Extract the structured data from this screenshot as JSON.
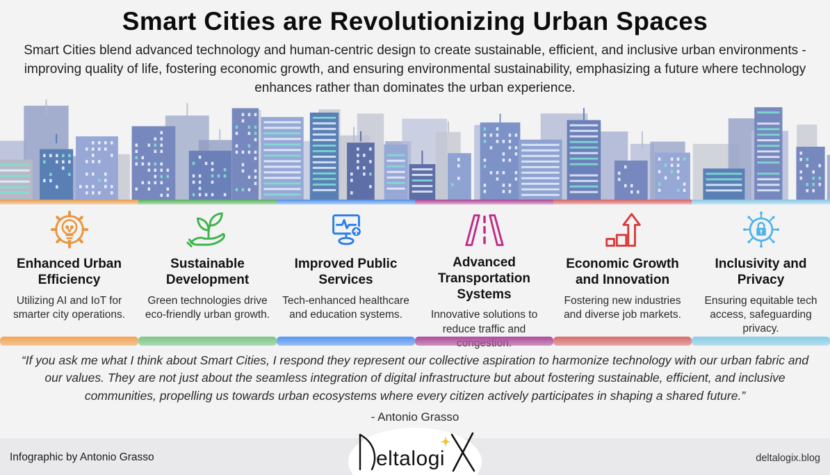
{
  "page": {
    "title": "Smart Cities are Revolutionizing Urban Spaces",
    "subtitle": "Smart Cities blend advanced technology and human-centric design to create sustainable, efficient, and inclusive urban environments - improving quality of life, fostering economic growth, and ensuring environmental sustainability, emphasizing a future where technology enhances rather than dominates the urban experience."
  },
  "theme": {
    "background": "#f3f3f4",
    "footer_background": "#e9e9eb",
    "title_color": "#0c0c0c",
    "body_text_color": "#2b2b2b",
    "skyline_palette": [
      "#5d6fa6",
      "#6b7fb8",
      "#7d92c6",
      "#8fa3d2",
      "#a0b0dc",
      "#5a7fb5",
      "#7688bd",
      "#98a8d6",
      "#b6bac6",
      "#7fd8cf"
    ]
  },
  "columns": [
    {
      "title": "Enhanced Urban Efficiency",
      "description": "Utilizing AI and IoT for smarter city operations.",
      "icon": "gear-lightbulb-icon",
      "icon_color": "#E8953C",
      "strip_color": "#E69A45",
      "bar_color": "#F2A95C"
    },
    {
      "title": "Sustainable Development",
      "description": "Green technologies drive eco-friendly urban growth.",
      "icon": "hand-plant-icon",
      "icon_color": "#3CB44B",
      "strip_color": "#52AF57",
      "bar_color": "#82C88C"
    },
    {
      "title": "Improved Public Services",
      "description": "Tech-enhanced healthcare and education systems.",
      "icon": "health-monitor-icon",
      "icon_color": "#2B7DE9",
      "strip_color": "#4A90E8",
      "bar_color": "#5E9CF0"
    },
    {
      "title": "Advanced Transportation Systems",
      "description": "Innovative solutions to reduce traffic and congestion.",
      "icon": "highway-icon",
      "icon_color": "#C02B87",
      "strip_color": "#AE3E93",
      "bar_color": "#B2549E"
    },
    {
      "title": "Economic Growth and Innovation",
      "description": "Fostering new industries and diverse job markets.",
      "icon": "growth-arrow-icon",
      "icon_color": "#D83B3B",
      "strip_color": "#D95F5F",
      "bar_color": "#D97474"
    },
    {
      "title": "Inclusivity and Privacy",
      "description": "Ensuring equitable tech access, safeguarding privacy.",
      "icon": "circuit-lock-icon",
      "icon_color": "#4FB3E8",
      "strip_color": "#86C7E6",
      "bar_color": "#8ECFE6"
    }
  ],
  "quote": {
    "text": "“If you ask me what I think about Smart Cities, I respond they represent our collective aspiration to harmonize technology with our urban fabric and our values. They are not just about the seamless integration of digital infrastructure but about fostering sustainable, efficient, and inclusive communities, propelling us towards urban ecosystems where every citizen actively participates in shaping a shared future.”",
    "attribution": "-  Antonio Grasso"
  },
  "footer": {
    "left": "Infographic by Antonio Grasso",
    "logo_text": "DeltalogiX",
    "logo_accent_color": "#F2C230",
    "right": "deltalogix.blog"
  }
}
